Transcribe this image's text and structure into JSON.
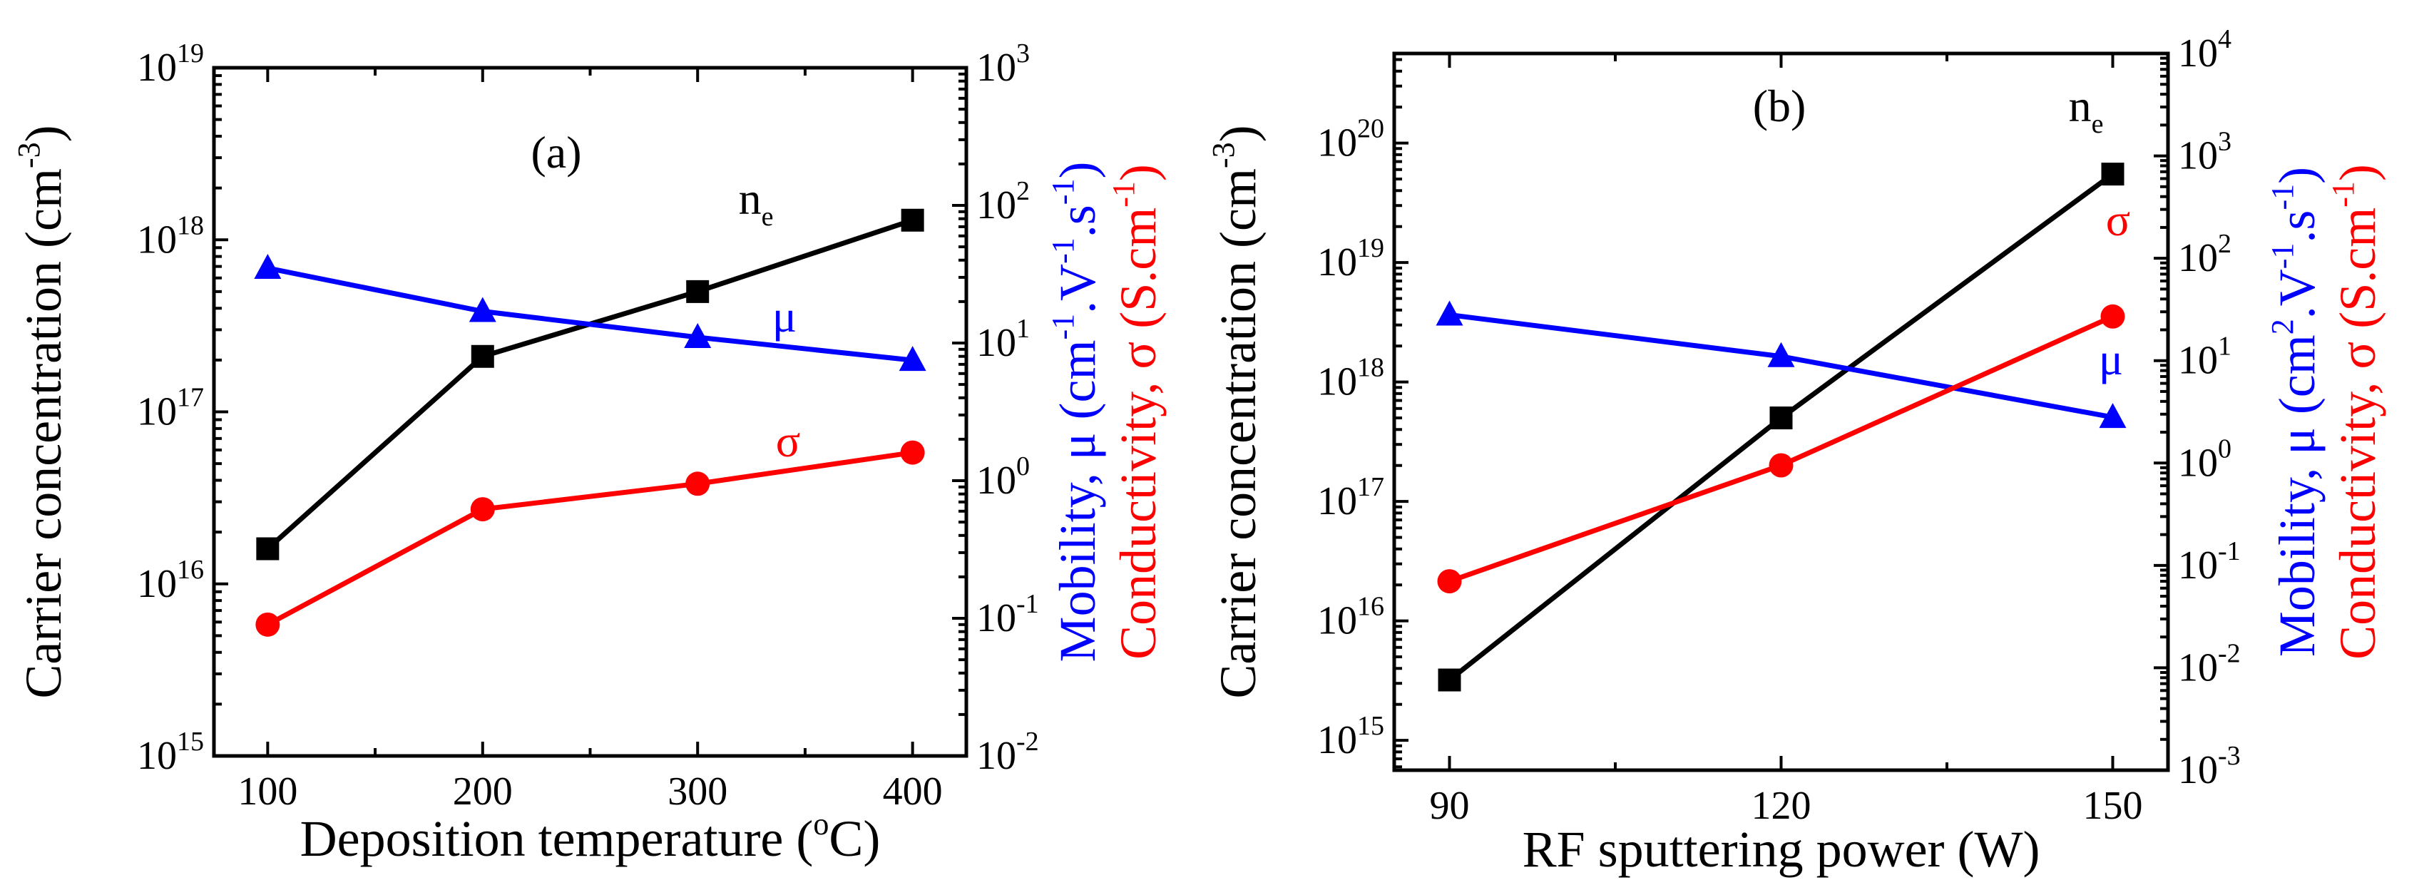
{
  "colors": {
    "ne": "#000000",
    "mu": "#0000ff",
    "sigma": "#ff0000"
  },
  "chart_data": [
    {
      "panel": "(a)",
      "type": "line",
      "xlabel": "Deposition temperature (oC)",
      "xlabel_parts": {
        "pre": "Deposition temperature (",
        "sup": "o",
        "post": "C)"
      },
      "x_ticks": [
        "100",
        "200",
        "300",
        "400"
      ],
      "xlim": [
        75,
        425
      ],
      "y_left": {
        "label": "Carrier concentration (cm-3)",
        "label_parts": {
          "pre": "Carrier concentration (cm",
          "sup": "-3",
          "post": ")"
        },
        "scale": "log",
        "ylim_exp": [
          15,
          19
        ],
        "ticks": [
          {
            "base": "10",
            "exp": "15"
          },
          {
            "base": "10",
            "exp": "16"
          },
          {
            "base": "10",
            "exp": "17"
          },
          {
            "base": "10",
            "exp": "18"
          },
          {
            "base": "10",
            "exp": "19"
          }
        ]
      },
      "y_right": {
        "label_mobility": {
          "pre": "Mobility, μ (cm",
          "sup": "-1",
          "mid": ".V",
          "sup2": "-1",
          "mid2": ".s",
          "sup3": "-1",
          "post": ")"
        },
        "label_conductivity": {
          "pre": "Conductivity, σ (S.cm",
          "sup": "-1",
          "post": ")"
        },
        "scale": "log",
        "ylim_exp": [
          -2,
          3
        ],
        "ticks": [
          {
            "base": "10",
            "exp": "-2"
          },
          {
            "base": "10",
            "exp": "-1"
          },
          {
            "base": "10",
            "exp": "0"
          },
          {
            "base": "10",
            "exp": "1"
          },
          {
            "base": "10",
            "exp": "2"
          },
          {
            "base": "10",
            "exp": "3"
          }
        ]
      },
      "series": [
        {
          "name": "ne",
          "label": "n",
          "label_sub": "e",
          "axis": "left",
          "marker": "square",
          "color_key": "ne",
          "x": [
            100,
            200,
            300,
            400
          ],
          "y": [
            1.6e+16,
            2.1e+17,
            5e+17,
            1.3e+18
          ]
        },
        {
          "name": "mu",
          "label": "μ",
          "axis": "right",
          "marker": "triangle",
          "color_key": "mu",
          "x": [
            100,
            200,
            300,
            400
          ],
          "y": [
            35,
            17,
            11,
            7.5
          ]
        },
        {
          "name": "sigma",
          "label": "σ",
          "axis": "right",
          "marker": "circle",
          "color_key": "sigma",
          "x": [
            100,
            200,
            300,
            400
          ],
          "y": [
            0.09,
            0.62,
            0.95,
            1.6
          ]
        }
      ]
    },
    {
      "panel": "(b)",
      "type": "line",
      "xlabel": "RF sputtering power (W)",
      "xlabel_parts": {
        "pre": "RF sputtering power (W)",
        "sup": "",
        "post": ""
      },
      "x_ticks": [
        "90",
        "120",
        "150"
      ],
      "xlim": [
        85,
        155
      ],
      "y_left": {
        "label": "Carrier concentration (cm-3)",
        "label_parts": {
          "pre": "Carrier concentration (cm",
          "sup": "-3",
          "post": ")"
        },
        "scale": "log",
        "ylim_exp": [
          14.75,
          20.75
        ],
        "ticks": [
          {
            "base": "10",
            "exp": "15"
          },
          {
            "base": "10",
            "exp": "16"
          },
          {
            "base": "10",
            "exp": "17"
          },
          {
            "base": "10",
            "exp": "18"
          },
          {
            "base": "10",
            "exp": "19"
          },
          {
            "base": "10",
            "exp": "20"
          }
        ]
      },
      "y_right": {
        "label_mobility": {
          "pre": "Mobility, μ (cm",
          "sup": "2",
          "mid": ".V",
          "sup2": "-1",
          "mid2": ".s",
          "sup3": "-1",
          "post": ")"
        },
        "label_conductivity": {
          "pre": "Conductivity, σ (S.cm",
          "sup": "-1",
          "post": ")"
        },
        "scale": "log",
        "ylim_exp": [
          -3,
          4
        ],
        "ticks": [
          {
            "base": "10",
            "exp": "-3"
          },
          {
            "base": "10",
            "exp": "-2"
          },
          {
            "base": "10",
            "exp": "-1"
          },
          {
            "base": "10",
            "exp": "0"
          },
          {
            "base": "10",
            "exp": "1"
          },
          {
            "base": "10",
            "exp": "2"
          },
          {
            "base": "10",
            "exp": "3"
          },
          {
            "base": "10",
            "exp": "4"
          }
        ]
      },
      "series": [
        {
          "name": "ne",
          "label": "n",
          "label_sub": "e",
          "axis": "left",
          "marker": "square",
          "color_key": "ne",
          "x": [
            90,
            120,
            150
          ],
          "y": [
            3200000000000000.0,
            5e+17,
            5.5e+19
          ]
        },
        {
          "name": "mu",
          "label": "μ",
          "axis": "right",
          "marker": "triangle",
          "color_key": "mu",
          "x": [
            90,
            120,
            150
          ],
          "y": [
            28,
            11,
            2.8
          ]
        },
        {
          "name": "sigma",
          "label": "σ",
          "axis": "right",
          "marker": "circle",
          "color_key": "sigma",
          "x": [
            90,
            120,
            150
          ],
          "y": [
            0.07,
            0.95,
            27
          ]
        }
      ]
    }
  ]
}
